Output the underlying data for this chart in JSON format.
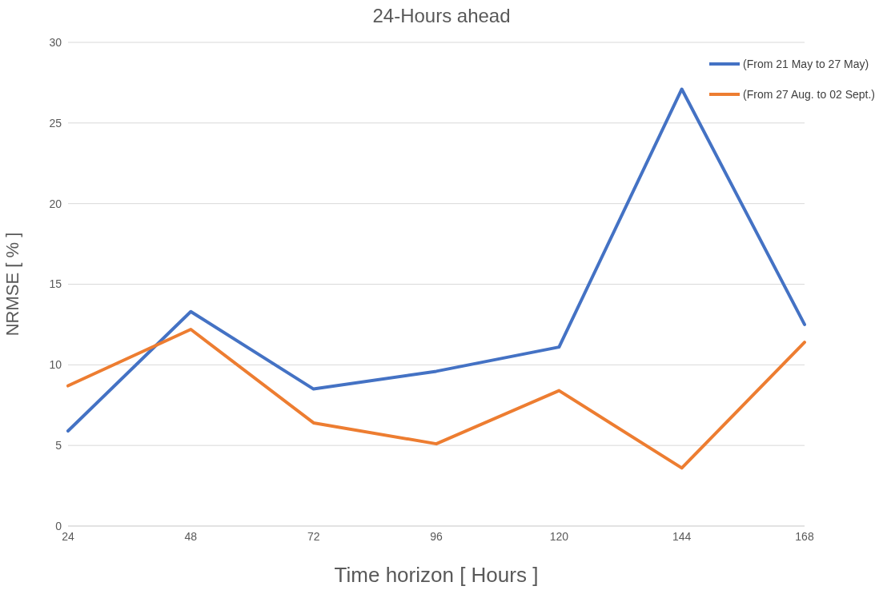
{
  "chart_data": {
    "type": "line",
    "title": "24-Hours ahead",
    "xlabel": "Time horizon [ Hours ]",
    "ylabel": "NRMSE [ % ]",
    "categories": [
      "24",
      "48",
      "72",
      "96",
      "120",
      "144",
      "168"
    ],
    "series": [
      {
        "name": "(From 21 May to 27 May)",
        "color": "#4472c4",
        "values": [
          5.9,
          13.3,
          8.5,
          9.6,
          11.1,
          27.1,
          12.5
        ]
      },
      {
        "name": "(From 27 Aug. to 02 Sept.)",
        "color": "#ed7d31",
        "values": [
          8.7,
          12.2,
          6.4,
          5.1,
          8.4,
          3.6,
          11.4
        ]
      }
    ],
    "ylim": [
      0,
      30
    ],
    "yticks": [
      0,
      5,
      10,
      15,
      20,
      25,
      30
    ],
    "grid": "y",
    "legend": "top right",
    "marker": "none",
    "line_style": "solid"
  }
}
